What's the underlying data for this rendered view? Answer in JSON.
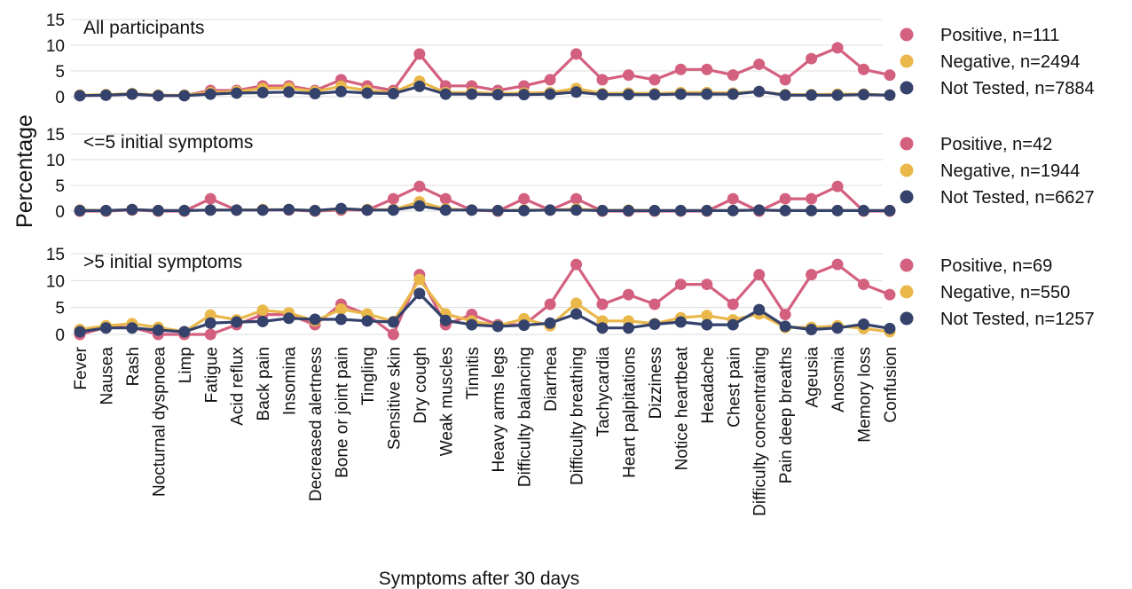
{
  "ylabel": "Percentage",
  "xlabel": "Symptoms after 30 days",
  "colors": {
    "Positive": "#d4607f",
    "Negative": "#eab84a",
    "Not Tested": "#35426b"
  },
  "chart_data": {
    "type": "line",
    "xlabel": "Symptoms after 30 days",
    "ylabel": "Percentage",
    "categories": [
      "Fever",
      "Nausea",
      "Rash",
      "Nocturnal dyspnoea",
      "Limp",
      "Fatigue",
      "Acid reflux",
      "Back pain",
      "Insomina",
      "Decreased alertness",
      "Bone or joint pain",
      "Tingling",
      "Sensitive skin",
      "Dry cough",
      "Weak muscles",
      "Tinnitis",
      "Heavy arms legs",
      "Difficulty balancing",
      "Diarrhea",
      "Difficulty breathing",
      "Tachycardia",
      "Heart palpitations",
      "Dizziness",
      "Notice heartbeat",
      "Headache",
      "Chest pain",
      "Difficulty concentrating",
      "Pain deep breaths",
      "Ageusia",
      "Anosmia",
      "Memory loss",
      "Confusion"
    ],
    "panels": [
      {
        "title": "All participants",
        "ylim": [
          0,
          15
        ],
        "yticks": [
          0,
          5,
          10,
          15
        ],
        "series": [
          {
            "name": "Positive",
            "legend": "Positive, n=111",
            "values": [
              0.2,
              0.3,
              0.5,
              0.2,
              0.2,
              1.2,
              1.2,
              2.1,
              2.1,
              1.2,
              3.3,
              2.1,
              1.2,
              8.3,
              2.1,
              2.1,
              1.2,
              2.1,
              3.3,
              8.3,
              3.3,
              4.2,
              3.3,
              5.3,
              5.3,
              4.2,
              6.3,
              3.3,
              7.4,
              9.5,
              5.3,
              4.2
            ]
          },
          {
            "name": "Negative",
            "legend": "Negative, n=2494",
            "values": [
              0.3,
              0.4,
              0.6,
              0.3,
              0.3,
              0.8,
              1.0,
              1.6,
              1.7,
              1.0,
              2.0,
              1.2,
              0.8,
              3.0,
              0.8,
              0.8,
              0.6,
              0.7,
              0.8,
              1.6,
              0.6,
              0.7,
              0.6,
              0.8,
              0.8,
              0.7,
              1.0,
              0.4,
              0.4,
              0.5,
              0.5,
              0.3
            ]
          },
          {
            "name": "Not Tested",
            "legend": "Not Tested, n=7884",
            "values": [
              0.2,
              0.3,
              0.5,
              0.2,
              0.2,
              0.5,
              0.7,
              0.8,
              0.9,
              0.6,
              1.0,
              0.7,
              0.6,
              2.0,
              0.5,
              0.5,
              0.4,
              0.4,
              0.5,
              0.9,
              0.4,
              0.4,
              0.4,
              0.5,
              0.5,
              0.5,
              1.0,
              0.3,
              0.3,
              0.3,
              0.4,
              0.3
            ]
          }
        ]
      },
      {
        "title": "<=5 initial symptoms",
        "ylim": [
          0,
          15
        ],
        "yticks": [
          0,
          5,
          10,
          15
        ],
        "series": [
          {
            "name": "Positive",
            "legend": "Positive, n=42",
            "values": [
              0,
              0,
              0.2,
              0,
              0,
              2.4,
              0.2,
              0.2,
              0.2,
              0,
              0.2,
              0.2,
              2.4,
              4.8,
              2.4,
              0.2,
              0,
              2.4,
              0.2,
              2.4,
              0,
              0,
              0,
              0,
              0,
              2.4,
              0,
              2.4,
              2.4,
              4.8,
              0,
              0
            ]
          },
          {
            "name": "Negative",
            "legend": "Negative, n=1944",
            "values": [
              0.2,
              0.1,
              0.3,
              0.1,
              0.1,
              0.2,
              0.2,
              0.3,
              0.3,
              0.1,
              0.4,
              0.3,
              0.3,
              1.8,
              0.4,
              0.2,
              0.1,
              0.2,
              0.2,
              0.4,
              0.1,
              0.2,
              0.1,
              0.1,
              0.1,
              0.1,
              0.2,
              0.1,
              0.1,
              0.1,
              0.1,
              0.1
            ]
          },
          {
            "name": "Not Tested",
            "legend": "Not Tested, n=6627",
            "values": [
              0.1,
              0.1,
              0.3,
              0.1,
              0.1,
              0.2,
              0.2,
              0.2,
              0.3,
              0.1,
              0.5,
              0.2,
              0.2,
              1.0,
              0.2,
              0.2,
              0.1,
              0.1,
              0.2,
              0.2,
              0.1,
              0.1,
              0.1,
              0.1,
              0.1,
              0.1,
              0.2,
              0.1,
              0.1,
              0.1,
              0.1,
              0.1
            ]
          }
        ]
      },
      {
        "title": ">5 initial symptoms",
        "ylim": [
          0,
          15
        ],
        "yticks": [
          0,
          5,
          10,
          15
        ],
        "series": [
          {
            "name": "Positive",
            "legend": "Positive, n=69",
            "values": [
              0,
              1.3,
              1.3,
              0,
              0,
              0,
              1.8,
              3.7,
              3.7,
              1.8,
              5.6,
              3.7,
              0,
              11.1,
              1.8,
              3.7,
              1.8,
              1.8,
              5.6,
              13.0,
              5.6,
              7.4,
              5.6,
              9.3,
              9.3,
              5.6,
              11.1,
              3.7,
              11.1,
              13.0,
              9.3,
              7.4
            ]
          },
          {
            "name": "Negative",
            "legend": "Negative, n=550",
            "values": [
              0.9,
              1.6,
              2.0,
              1.3,
              0.5,
              3.6,
              2.7,
              4.5,
              4.0,
              2.5,
              4.7,
              3.8,
              2.4,
              10.2,
              3.8,
              2.5,
              1.6,
              2.9,
              1.6,
              5.8,
              2.5,
              2.5,
              2.0,
              3.1,
              3.5,
              2.7,
              3.8,
              1.3,
              1.3,
              1.6,
              1.1,
              0.5
            ]
          },
          {
            "name": "Not Tested",
            "legend": "Not Tested, n=1257",
            "values": [
              0.5,
              1.2,
              1.2,
              0.8,
              0.5,
              2.1,
              2.3,
              2.4,
              3.0,
              2.8,
              2.8,
              2.5,
              2.3,
              7.6,
              2.6,
              1.8,
              1.5,
              1.7,
              2.1,
              3.8,
              1.2,
              1.2,
              1.9,
              2.3,
              1.8,
              1.8,
              4.6,
              1.5,
              0.9,
              1.2,
              1.9,
              1.1
            ]
          }
        ]
      }
    ],
    "grid": true,
    "legend_position": "right"
  }
}
